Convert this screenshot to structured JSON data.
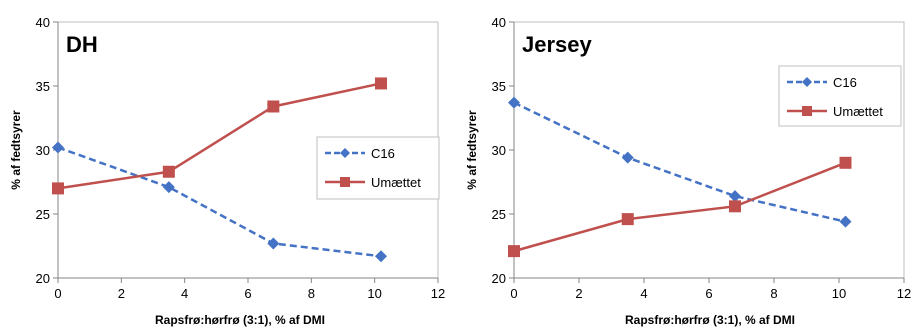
{
  "chart_data": [
    {
      "type": "line",
      "title": "DH",
      "xlabel": "Rapsfrø:hørfrø (3:1), % af DMI",
      "ylabel": "% af fedtsyrer",
      "xlim": [
        0,
        12
      ],
      "ylim": [
        20,
        40
      ],
      "xticks": [
        0,
        2,
        4,
        6,
        8,
        10,
        12
      ],
      "yticks": [
        20,
        25,
        30,
        35,
        40
      ],
      "grid": false,
      "legend_position": "right",
      "series": [
        {
          "name": "C16",
          "color": "#4472C4",
          "line_style": "dashed",
          "marker": "diamond",
          "x": [
            0,
            3.5,
            6.8,
            10.2
          ],
          "y": [
            30.2,
            27.1,
            22.7,
            21.7
          ]
        },
        {
          "name": "Umættet",
          "color": "#C0504D",
          "line_style": "solid",
          "marker": "square",
          "x": [
            0,
            3.5,
            6.8,
            10.2
          ],
          "y": [
            27.0,
            28.3,
            33.4,
            35.2
          ]
        }
      ]
    },
    {
      "type": "line",
      "title": "Jersey",
      "xlabel": "Rapsfrø:hørfrø (3:1), % af DMI",
      "ylabel": "% af fedtsyrer",
      "xlim": [
        0,
        12
      ],
      "ylim": [
        20,
        40
      ],
      "xticks": [
        0,
        2,
        4,
        6,
        8,
        10,
        12
      ],
      "yticks": [
        20,
        25,
        30,
        35,
        40
      ],
      "grid": false,
      "legend_position": "top-right",
      "series": [
        {
          "name": "C16",
          "color": "#4472C4",
          "line_style": "dashed",
          "marker": "diamond",
          "x": [
            0,
            3.5,
            6.8,
            10.2
          ],
          "y": [
            33.7,
            29.4,
            26.4,
            24.4
          ]
        },
        {
          "name": "Umættet",
          "color": "#C0504D",
          "line_style": "solid",
          "marker": "square",
          "x": [
            0,
            3.5,
            6.8,
            10.2
          ],
          "y": [
            22.1,
            24.6,
            25.6,
            29.0
          ]
        }
      ]
    }
  ]
}
